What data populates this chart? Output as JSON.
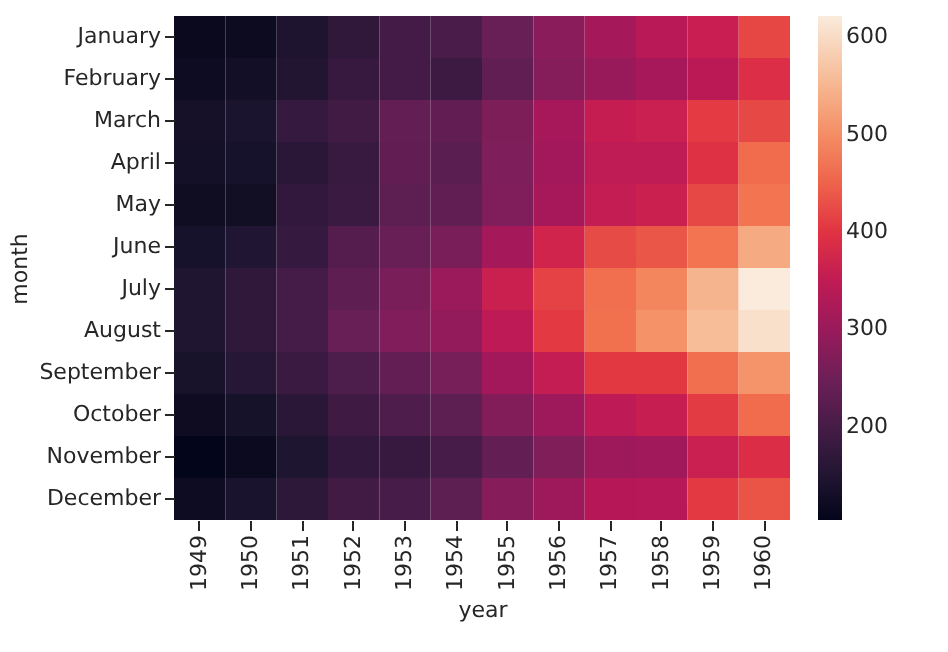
{
  "chart_data": {
    "type": "heatmap",
    "xlabel": "year",
    "ylabel": "month",
    "categories": [
      "1949",
      "1950",
      "1951",
      "1952",
      "1953",
      "1954",
      "1955",
      "1956",
      "1957",
      "1958",
      "1959",
      "1960"
    ],
    "y_categories": [
      "January",
      "February",
      "March",
      "April",
      "May",
      "June",
      "July",
      "August",
      "September",
      "October",
      "November",
      "December"
    ],
    "cells": [
      [
        112,
        115,
        145,
        171,
        196,
        204,
        242,
        284,
        315,
        340,
        360,
        417
      ],
      [
        118,
        126,
        150,
        180,
        196,
        188,
        233,
        277,
        301,
        318,
        342,
        391
      ],
      [
        132,
        141,
        178,
        193,
        236,
        235,
        267,
        317,
        356,
        362,
        406,
        419
      ],
      [
        129,
        135,
        163,
        181,
        235,
        227,
        269,
        313,
        348,
        348,
        396,
        461
      ],
      [
        121,
        125,
        172,
        183,
        229,
        234,
        270,
        318,
        355,
        363,
        420,
        472
      ],
      [
        135,
        149,
        178,
        218,
        243,
        264,
        315,
        374,
        422,
        435,
        472,
        535
      ],
      [
        148,
        170,
        199,
        230,
        264,
        302,
        364,
        413,
        465,
        491,
        548,
        622
      ],
      [
        148,
        170,
        199,
        242,
        272,
        293,
        347,
        405,
        467,
        505,
        559,
        606
      ],
      [
        136,
        158,
        184,
        209,
        237,
        259,
        312,
        355,
        404,
        404,
        463,
        508
      ],
      [
        119,
        133,
        162,
        191,
        211,
        229,
        274,
        306,
        347,
        359,
        407,
        461
      ],
      [
        104,
        114,
        146,
        172,
        180,
        203,
        237,
        271,
        305,
        310,
        362,
        390
      ],
      [
        118,
        140,
        166,
        194,
        201,
        229,
        278,
        306,
        336,
        337,
        405,
        432
      ]
    ],
    "clim": [
      104,
      622
    ],
    "cticks": [
      200,
      300,
      400,
      500,
      600
    ],
    "grid": false
  }
}
